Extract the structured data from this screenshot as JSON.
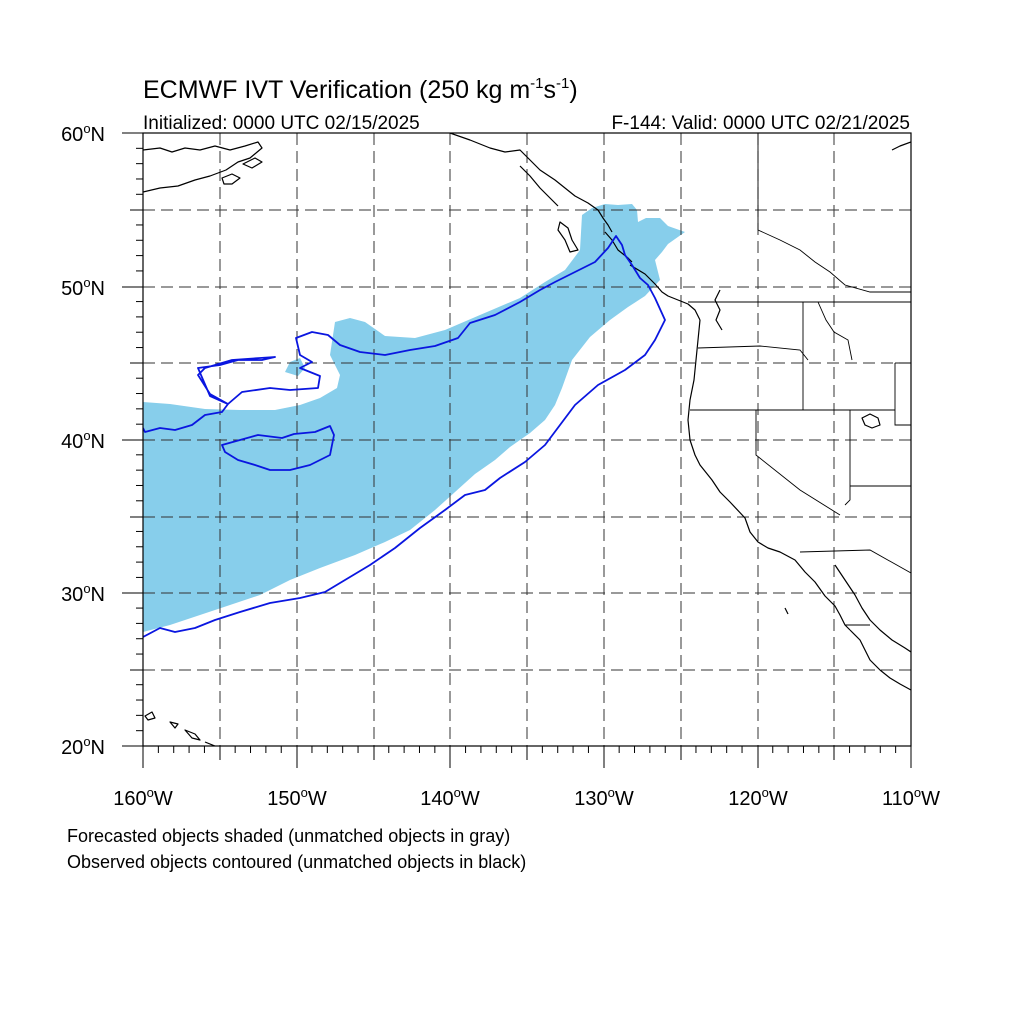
{
  "title": {
    "main": "ECMWF IVT Verification (250 kg m",
    "sup1": "-1",
    "mid": "s",
    "sup2": "-1",
    "end": ")"
  },
  "subtitle_left": "Initialized: 0000 UTC 02/15/2025",
  "subtitle_right": "F-144: Valid: 0000 UTC 02/21/2025",
  "lat_labels": [
    {
      "deg": "60",
      "hemi": "N",
      "lat": 60
    },
    {
      "deg": "50",
      "hemi": "N",
      "lat": 50
    },
    {
      "deg": "40",
      "hemi": "N",
      "lat": 40
    },
    {
      "deg": "30",
      "hemi": "N",
      "lat": 30
    },
    {
      "deg": "20",
      "hemi": "N",
      "lat": 20
    }
  ],
  "lon_labels": [
    {
      "deg": "160",
      "hemi": "W",
      "lon": -160
    },
    {
      "deg": "150",
      "hemi": "W",
      "lon": -150
    },
    {
      "deg": "140",
      "hemi": "W",
      "lon": -140
    },
    {
      "deg": "130",
      "hemi": "W",
      "lon": -130
    },
    {
      "deg": "120",
      "hemi": "W",
      "lon": -120
    },
    {
      "deg": "110",
      "hemi": "W",
      "lon": -110
    }
  ],
  "caption_line1": "Forecasted objects shaded (unmatched objects in gray)",
  "caption_line2": "Observed objects contoured (unmatched objects in black)",
  "colors": {
    "forecast_fill": "#87ceeb",
    "observed_contour": "#0a16e0",
    "coastline": "#000000",
    "grid": "#333333"
  },
  "map_extent": {
    "lon_min": -160,
    "lon_max": -110,
    "lat_min": 20,
    "lat_max": 60,
    "grid_spacing_deg": 5,
    "grid": "dashed"
  }
}
